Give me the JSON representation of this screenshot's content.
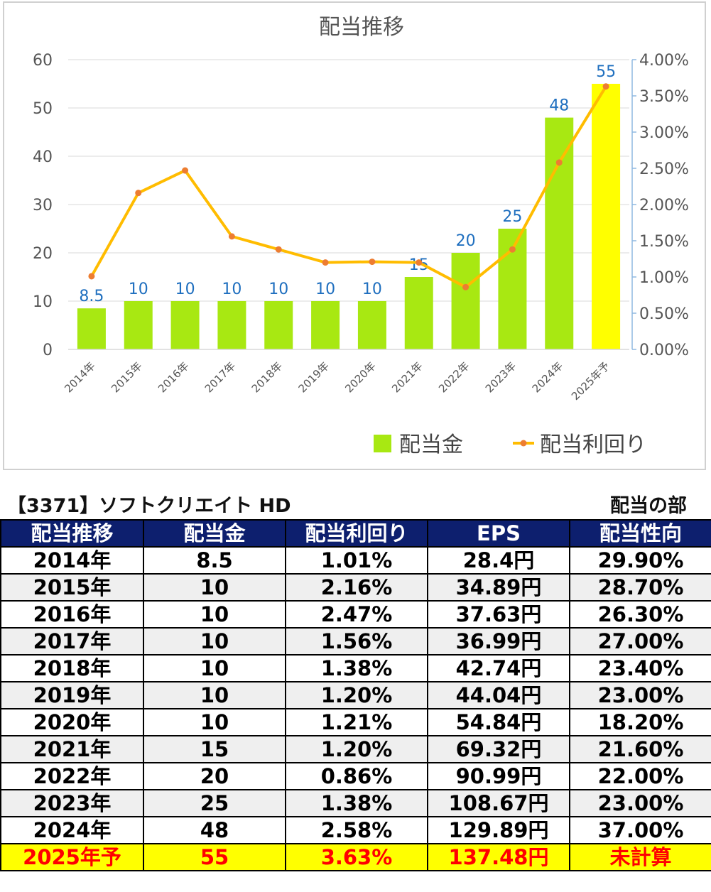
{
  "chart_data": {
    "type": "bar+line",
    "title": "配当推移",
    "categories": [
      "2014年",
      "2015年",
      "2016年",
      "2017年",
      "2018年",
      "2019年",
      "2020年",
      "2021年",
      "2022年",
      "2023年",
      "2024年",
      "2025年予"
    ],
    "series": [
      {
        "name": "配当金",
        "type": "bar",
        "axis": "left",
        "values": [
          8.5,
          10,
          10,
          10,
          10,
          10,
          10,
          15,
          20,
          25,
          48,
          55
        ],
        "labels": [
          "8.5",
          "10",
          "10",
          "10",
          "10",
          "10",
          "10",
          "15",
          "20",
          "25",
          "48",
          "55"
        ]
      },
      {
        "name": "配当利回り",
        "type": "line",
        "axis": "right",
        "values": [
          1.01,
          2.16,
          2.47,
          1.56,
          1.38,
          1.2,
          1.21,
          1.2,
          0.86,
          1.38,
          2.58,
          3.63
        ]
      }
    ],
    "ylim_left": [
      0,
      60
    ],
    "yticks_left": [
      "0",
      "10",
      "20",
      "30",
      "40",
      "50",
      "60"
    ],
    "ylim_right": [
      0,
      4
    ],
    "yticks_right": [
      "0.00%",
      "0.50%",
      "1.00%",
      "1.50%",
      "2.00%",
      "2.50%",
      "3.00%",
      "3.50%",
      "4.00%"
    ],
    "grid": true,
    "legend_position": "bottom-right",
    "colors": {
      "bar": "#a8e812",
      "bar_forecast": "#ffff00",
      "line": "#ffbc00",
      "marker": "#ed7d31",
      "label": "#1f6fbf"
    }
  },
  "table": {
    "company": "【3371】ソフトクリエイト HD",
    "section": "配当の部",
    "headers": [
      "配当推移",
      "配当金",
      "配当利回り",
      "EPS",
      "配当性向"
    ],
    "rows": [
      [
        "2014年",
        "8.5",
        "1.01%",
        "28.4円",
        "29.90%"
      ],
      [
        "2015年",
        "10",
        "2.16%",
        "34.89円",
        "28.70%"
      ],
      [
        "2016年",
        "10",
        "2.47%",
        "37.63円",
        "26.30%"
      ],
      [
        "2017年",
        "10",
        "1.56%",
        "36.99円",
        "27.00%"
      ],
      [
        "2018年",
        "10",
        "1.38%",
        "42.74円",
        "23.40%"
      ],
      [
        "2019年",
        "10",
        "1.20%",
        "44.04円",
        "23.00%"
      ],
      [
        "2020年",
        "10",
        "1.21%",
        "54.84円",
        "18.20%"
      ],
      [
        "2021年",
        "15",
        "1.20%",
        "69.32円",
        "21.60%"
      ],
      [
        "2022年",
        "20",
        "0.86%",
        "90.99円",
        "22.00%"
      ],
      [
        "2023年",
        "25",
        "1.38%",
        "108.67円",
        "23.00%"
      ],
      [
        "2024年",
        "48",
        "2.58%",
        "129.89円",
        "37.00%"
      ],
      [
        "2025年予",
        "55",
        "3.63%",
        "137.48円",
        "未計算"
      ]
    ]
  }
}
